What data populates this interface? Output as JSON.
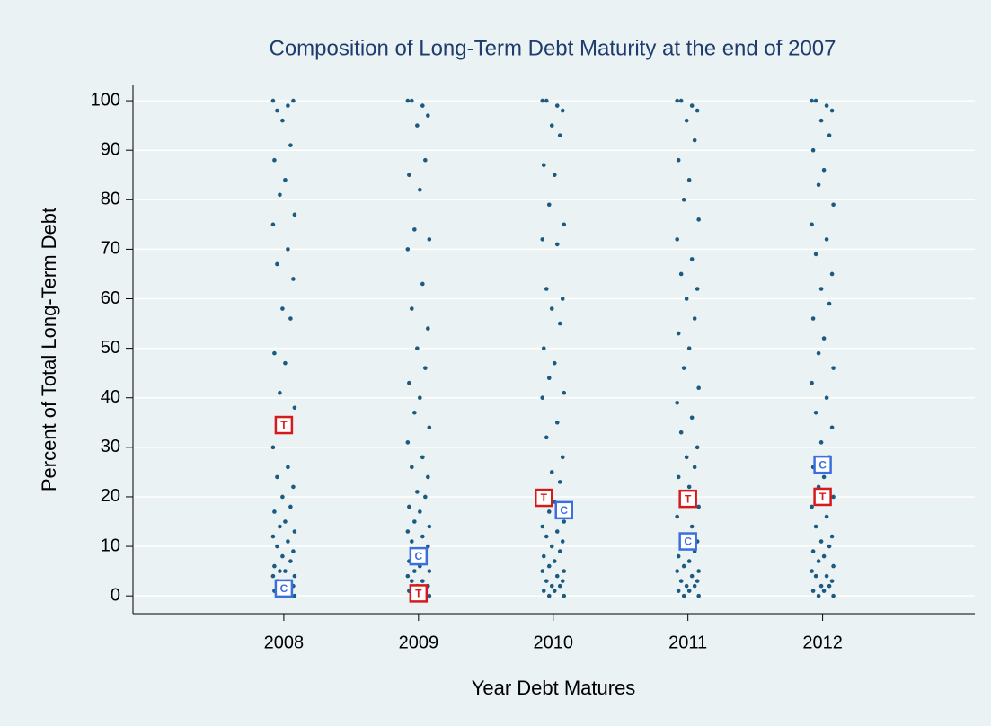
{
  "chart_data": {
    "type": "scatter",
    "title": "Composition of Long-Term Debt Maturity at the end of 2007",
    "xlabel": "Year Debt Matures",
    "ylabel": "Percent of Total Long-Term Debt",
    "xlim": [
      2006.88,
      2013.13
    ],
    "xticks": [
      2008,
      2009,
      2010,
      2011,
      2012
    ],
    "ylim": [
      -3.6,
      103.1
    ],
    "yticks": [
      0,
      10,
      20,
      30,
      40,
      50,
      60,
      70,
      80,
      90,
      100
    ],
    "grid": true,
    "series": [
      {
        "color": "#1b5b82",
        "x": [
          2007.92,
          2008.03,
          2007.95,
          2008.07,
          2007.99,
          2008.05,
          2007.93,
          2008.01,
          2007.97,
          2008.08,
          2007.92,
          2008.03,
          2007.95,
          2008.07,
          2007.99,
          2008.05,
          2007.93,
          2008.01,
          2007.97,
          2008.08,
          2007.92,
          2008.03,
          2007.95,
          2008.07,
          2007.99,
          2008.05,
          2007.93,
          2008.01,
          2007.97,
          2008.08,
          2007.92,
          2008.03,
          2007.95,
          2008.07,
          2007.99,
          2008.05,
          2007.93,
          2008.01,
          2007.97,
          2008.08,
          2007.92,
          2008.03,
          2007.95,
          2008.07,
          2007.99,
          2008.05,
          2007.93,
          2008.01,
          2007.97,
          2008.08,
          2008.92,
          2009.03,
          2008.95,
          2009.07,
          2008.99,
          2009.05,
          2008.93,
          2009.01,
          2008.97,
          2009.08,
          2008.92,
          2009.03,
          2008.95,
          2009.07,
          2008.99,
          2009.05,
          2008.93,
          2009.01,
          2008.97,
          2009.08,
          2008.92,
          2009.03,
          2008.95,
          2009.07,
          2008.99,
          2009.05,
          2008.93,
          2009.01,
          2008.97,
          2009.08,
          2008.92,
          2009.03,
          2008.95,
          2009.07,
          2008.99,
          2009.05,
          2008.93,
          2009.01,
          2008.97,
          2009.08,
          2008.92,
          2009.03,
          2008.95,
          2009.07,
          2008.99,
          2009.05,
          2008.93,
          2009.01,
          2008.97,
          2009.08,
          2009.92,
          2010.03,
          2009.95,
          2010.07,
          2009.99,
          2010.05,
          2009.93,
          2010.01,
          2009.97,
          2010.08,
          2009.92,
          2010.03,
          2009.95,
          2010.07,
          2009.99,
          2010.05,
          2009.93,
          2010.01,
          2009.97,
          2010.08,
          2009.92,
          2010.03,
          2009.95,
          2010.07,
          2009.99,
          2010.05,
          2009.93,
          2010.01,
          2009.97,
          2010.08,
          2009.92,
          2010.03,
          2009.95,
          2010.07,
          2009.99,
          2010.05,
          2009.93,
          2010.01,
          2009.97,
          2010.08,
          2009.92,
          2010.03,
          2009.95,
          2010.07,
          2009.99,
          2010.05,
          2009.93,
          2010.01,
          2009.97,
          2010.08,
          2010.92,
          2011.03,
          2010.95,
          2011.07,
          2010.99,
          2011.05,
          2010.93,
          2011.01,
          2010.97,
          2011.08,
          2010.92,
          2011.03,
          2010.95,
          2011.07,
          2010.99,
          2011.05,
          2010.93,
          2011.01,
          2010.97,
          2011.08,
          2010.92,
          2011.03,
          2010.95,
          2011.07,
          2010.99,
          2011.05,
          2010.93,
          2011.01,
          2010.97,
          2011.08,
          2010.92,
          2011.03,
          2010.95,
          2011.07,
          2010.99,
          2011.05,
          2010.93,
          2011.01,
          2010.97,
          2011.08,
          2010.92,
          2011.03,
          2010.95,
          2011.07,
          2010.99,
          2011.05,
          2010.93,
          2011.01,
          2010.97,
          2011.08,
          2011.92,
          2012.03,
          2011.95,
          2012.07,
          2011.99,
          2012.05,
          2011.93,
          2012.01,
          2011.97,
          2012.08,
          2011.92,
          2012.03,
          2011.95,
          2012.07,
          2011.99,
          2012.05,
          2011.93,
          2012.01,
          2011.97,
          2012.08,
          2011.92,
          2012.03,
          2011.95,
          2012.07,
          2011.99,
          2012.05,
          2011.93,
          2012.01,
          2011.97,
          2012.08,
          2011.92,
          2012.03,
          2011.95,
          2012.07,
          2011.99,
          2012.05,
          2011.93,
          2012.01,
          2011.97,
          2012.08,
          2011.92,
          2012.03,
          2011.95,
          2012.07,
          2011.99,
          2012.05,
          2011.93,
          2012.01,
          2011.97,
          2012.08
        ],
        "values": [
          100,
          99,
          98,
          100,
          96,
          91,
          88,
          84,
          81,
          77,
          75,
          70,
          67,
          64,
          58,
          56,
          49,
          47,
          41,
          38,
          30,
          26,
          24,
          22,
          20,
          18,
          17,
          15,
          14,
          13,
          12,
          11,
          10,
          9,
          8,
          7,
          6,
          5,
          5,
          4,
          4,
          3,
          3,
          2,
          2,
          1,
          1,
          0,
          0,
          0,
          100,
          99,
          100,
          97,
          95,
          88,
          85,
          82,
          74,
          72,
          70,
          63,
          58,
          54,
          50,
          46,
          43,
          40,
          37,
          34,
          31,
          28,
          26,
          24,
          21,
          20,
          18,
          17,
          15,
          14,
          13,
          12,
          11,
          10,
          9,
          8,
          7,
          6,
          5,
          5,
          4,
          3,
          3,
          2,
          2,
          1,
          1,
          0,
          0,
          0,
          100,
          99,
          100,
          98,
          95,
          93,
          87,
          85,
          79,
          75,
          72,
          71,
          62,
          60,
          58,
          55,
          50,
          47,
          44,
          41,
          40,
          35,
          32,
          28,
          25,
          23,
          21,
          19,
          17,
          15,
          14,
          13,
          12,
          11,
          10,
          9,
          8,
          7,
          6,
          5,
          5,
          4,
          3,
          3,
          2,
          2,
          1,
          1,
          0,
          0,
          100,
          99,
          100,
          98,
          96,
          92,
          88,
          84,
          80,
          76,
          72,
          68,
          65,
          62,
          60,
          56,
          53,
          50,
          46,
          42,
          39,
          36,
          33,
          30,
          28,
          26,
          24,
          22,
          20,
          18,
          16,
          14,
          12,
          11,
          10,
          9,
          8,
          7,
          6,
          5,
          5,
          4,
          3,
          3,
          2,
          2,
          1,
          1,
          0,
          0,
          100,
          99,
          100,
          98,
          96,
          93,
          90,
          86,
          83,
          79,
          75,
          72,
          69,
          65,
          62,
          59,
          56,
          52,
          49,
          46,
          43,
          40,
          37,
          34,
          31,
          28,
          26,
          24,
          22,
          20,
          18,
          16,
          14,
          12,
          11,
          10,
          9,
          8,
          7,
          6,
          5,
          4,
          4,
          3,
          2,
          2,
          1,
          1,
          0,
          0
        ]
      },
      {
        "name": "T",
        "color": "#d7191c",
        "x": [
          2008,
          2009,
          2009.93,
          2011,
          2012
        ],
        "values": [
          34.5,
          0.5,
          19.8,
          19.6,
          20
        ]
      },
      {
        "name": "C",
        "color": "#3b6fe0",
        "x": [
          2008,
          2009,
          2010.08,
          2011,
          2012
        ],
        "values": [
          1.5,
          8,
          17.3,
          11,
          26.5
        ]
      }
    ]
  }
}
